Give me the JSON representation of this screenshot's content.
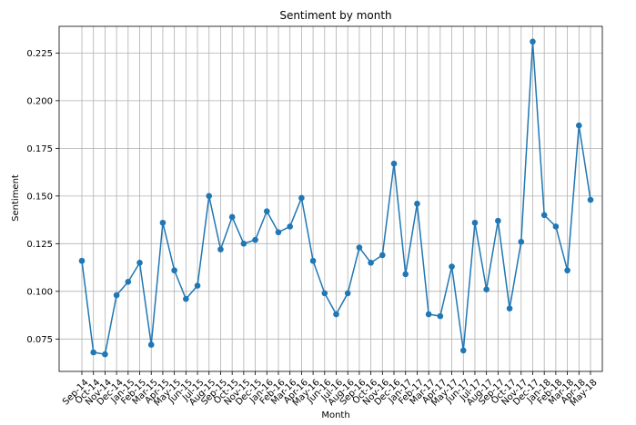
{
  "chart_data": {
    "type": "line",
    "title": "Sentiment by month",
    "xlabel": "Month",
    "ylabel": "Sentiment",
    "grid": true,
    "marker": "circle",
    "series_color": "#1f77b4",
    "ylim": [
      0.058,
      0.239
    ],
    "yticks": [
      "0.075",
      "0.100",
      "0.125",
      "0.150",
      "0.175",
      "0.200",
      "0.225"
    ],
    "categories": [
      "Sep-14",
      "Oct-14",
      "Nov-14",
      "Dec-14",
      "Jan-15",
      "Feb-15",
      "Mar-15",
      "Apr-15",
      "May-15",
      "Jun-15",
      "Jul-15",
      "Aug-15",
      "Sep-15",
      "Oct-15",
      "Nov-15",
      "Dec-15",
      "Jan-16",
      "Feb-16",
      "Mar-16",
      "Apr-16",
      "May-16",
      "Jun-16",
      "Jul-16",
      "Aug-16",
      "Sep-16",
      "Oct-16",
      "Nov-16",
      "Dec-16",
      "Jan-17",
      "Feb-17",
      "Mar-17",
      "Apr-17",
      "May-17",
      "Jun-17",
      "Jul-17",
      "Aug-17",
      "Sep-17",
      "Oct-17",
      "Nov-17",
      "Dec-17",
      "Jan-18",
      "Feb-18",
      "Mar-18",
      "Apr-18",
      "May-18"
    ],
    "values": [
      0.116,
      0.068,
      0.067,
      0.098,
      0.105,
      0.115,
      0.072,
      0.136,
      0.111,
      0.096,
      0.103,
      0.15,
      0.122,
      0.139,
      0.125,
      0.127,
      0.142,
      0.131,
      0.134,
      0.149,
      0.116,
      0.099,
      0.088,
      0.099,
      0.123,
      0.115,
      0.119,
      0.167,
      0.109,
      0.146,
      0.088,
      0.087,
      0.113,
      0.069,
      0.136,
      0.101,
      0.137,
      0.091,
      0.126,
      0.231,
      0.14,
      0.134,
      0.111,
      0.187,
      0.148
    ]
  }
}
